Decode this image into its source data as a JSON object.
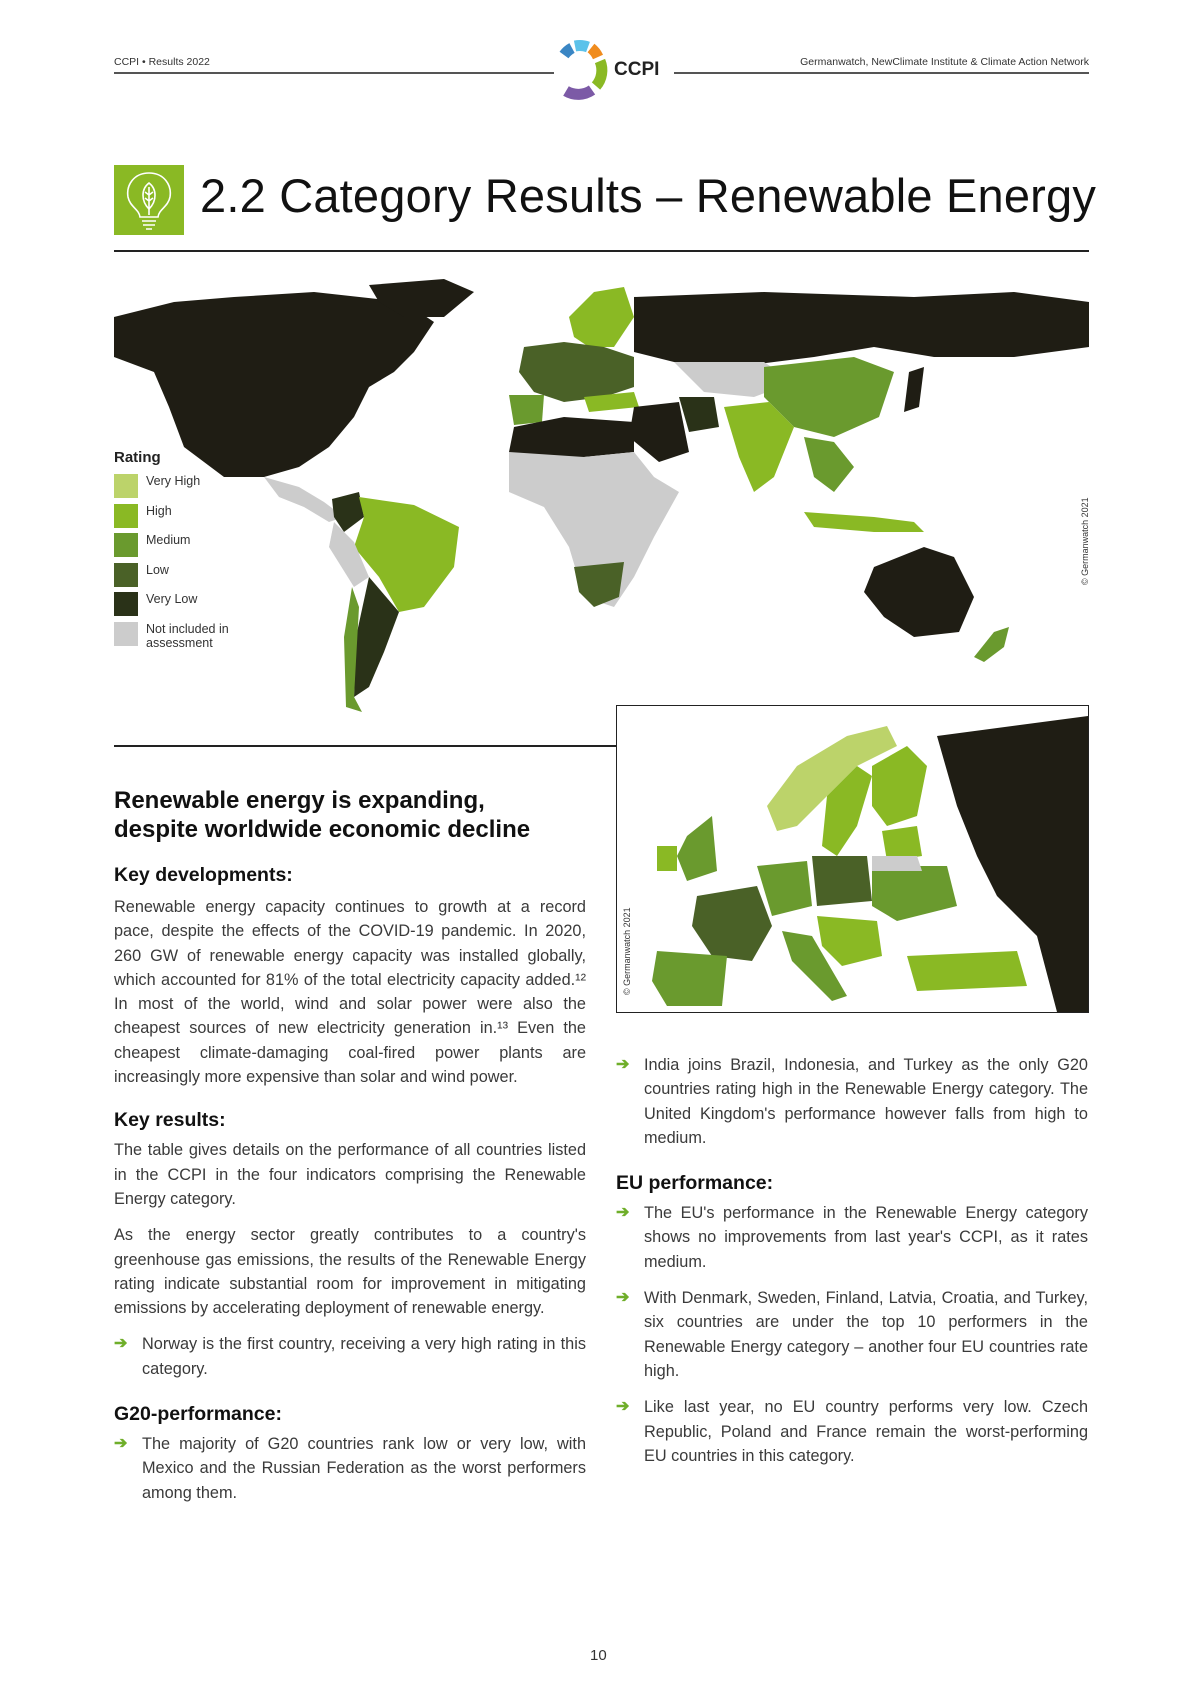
{
  "header": {
    "left": "CCPI • Results 2022",
    "logo_text": "CCPI",
    "right": "Germanwatch, NewClimate Institute & Climate Action Network"
  },
  "title": {
    "icon": "lightbulb-leaf-icon",
    "text": "2.2 Category Results – Renewable Energy"
  },
  "map": {
    "legend_title": "Rating",
    "legend": [
      {
        "label": "Very High",
        "color": "#bcd36a"
      },
      {
        "label": "High",
        "color": "#8ab924"
      },
      {
        "label": "Medium",
        "color": "#6a9a2e"
      },
      {
        "label": "Low",
        "color": "#4a6127"
      },
      {
        "label": "Very Low",
        "color": "#2a3218"
      },
      {
        "label": "Not included in assessment",
        "color": "#cccccc"
      }
    ],
    "copyright": "© Germanwatch 2021",
    "inset_copyright": "© Germanwatch 2021"
  },
  "left": {
    "headline": "Renewable energy is expanding, despite worldwide economic decline",
    "key_dev_heading": "Key developments:",
    "key_dev_text": "Renewable energy capacity continues to growth at a record pace, despite the effects of the COVID-19 pandemic. In 2020, 260 GW of renewable energy capacity was installed globally, which accounted for 81% of the total electricity capacity added.¹² In most of the world, wind and solar power were also the cheapest sources of new electricity generation in.¹³ Even the cheapest climate-damaging coal-fired power plants are increasingly more expensive than solar and wind power.",
    "key_res_heading": "Key results:",
    "key_res_p1": "The table gives details on the performance of all countries listed in the CCPI in the four indicators comprising the Renewable Energy category.",
    "key_res_p2": "As the energy sector greatly contributes to a country's greenhouse gas emissions, the results of the Renewable Energy rating indicate substantial room for improvement in mitigating emissions by accelerating deployment of renewable energy.",
    "key_res_bullet": "Norway is the first country, receiving a very high rating in this category.",
    "g20_heading": "G20-performance:",
    "g20_bullet": "The majority of G20 countries rank low or very low, with Mexico and the Russian Federation as the worst performers among them."
  },
  "right": {
    "g20_bullet2": "India joins Brazil, Indonesia, and Turkey as the only G20 countries rating high in the Renewable Energy category. The United Kingdom's performance however falls from high to medium.",
    "eu_heading": "EU performance:",
    "eu_bullets": [
      "The EU's performance in the Renewable Energy category shows no improvements from last year's CCPI, as it rates medium.",
      "With Denmark, Sweden, Finland, Latvia, Croatia, and Turkey, six countries are under the top 10 performers in the Renewable Energy category – another four EU countries rate high.",
      "Like last year, no EU country performs very low. Czech Republic, Poland and France remain the worst-performing EU countries in this category."
    ]
  },
  "page_number": "10"
}
